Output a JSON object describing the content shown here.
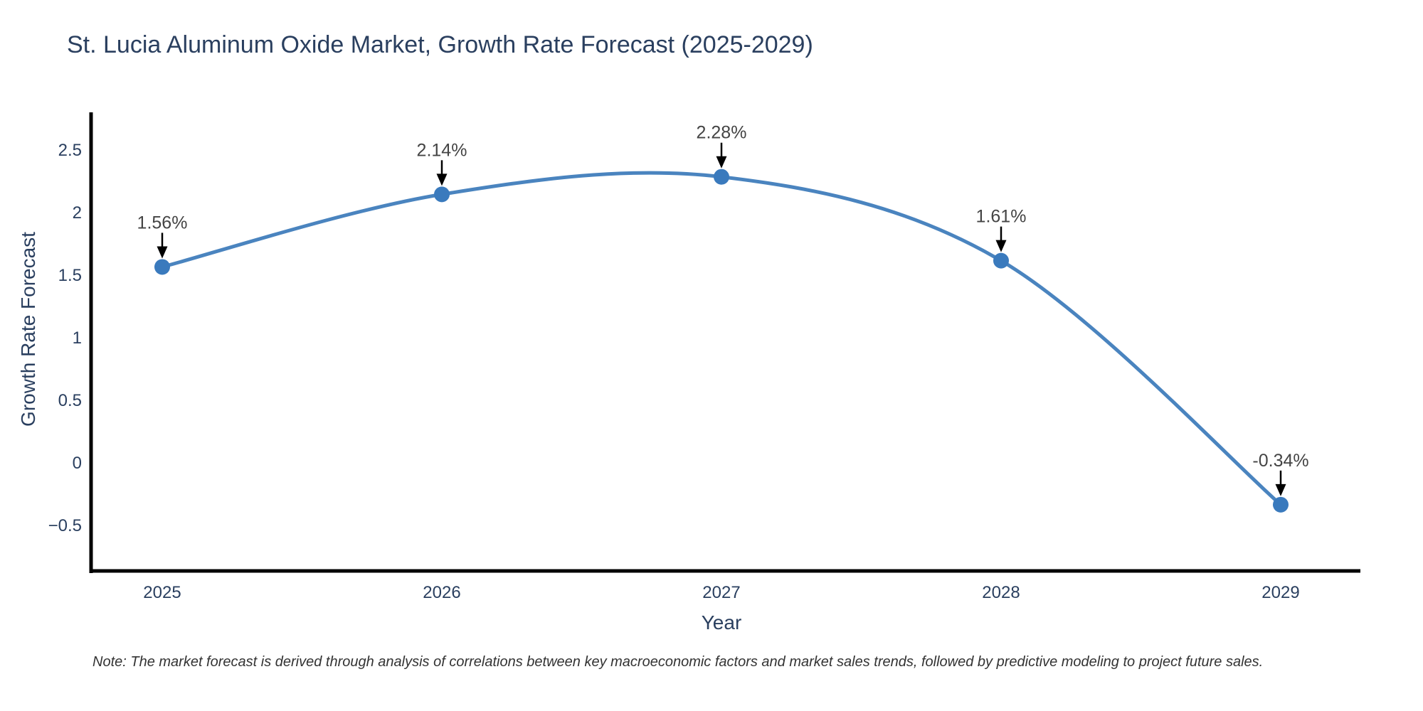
{
  "chart_data": {
    "type": "line",
    "line_shape": "spline",
    "title": "St. Lucia Aluminum Oxide Market, Growth Rate Forecast (2025-2029)",
    "xlabel": "Year",
    "ylabel": "Growth Rate Forecast",
    "note": "Note: The market forecast is derived through analysis of correlations between key macroeconomic factors and market sales trends, followed by predictive modeling to project future sales.",
    "x": [
      2025,
      2026,
      2027,
      2028,
      2029
    ],
    "values": [
      1.56,
      2.14,
      2.28,
      1.61,
      -0.34
    ],
    "point_labels": [
      "1.56%",
      "2.14%",
      "2.28%",
      "1.61%",
      "-0.34%"
    ],
    "xticks": [
      "2025",
      "2026",
      "2027",
      "2028",
      "2029"
    ],
    "yticks": [
      {
        "value": 2.5,
        "label": "2.5"
      },
      {
        "value": 2,
        "label": "2"
      },
      {
        "value": 1.5,
        "label": "1.5"
      },
      {
        "value": 1,
        "label": "1"
      },
      {
        "value": 0.5,
        "label": "0.5"
      },
      {
        "value": 0,
        "label": "0"
      },
      {
        "value": -0.5,
        "label": "−0.5"
      }
    ],
    "ylim": [
      -0.87,
      2.8
    ],
    "grid": false,
    "legend": "none",
    "colors": {
      "line": "#4a84bf",
      "marker": "#3a7abd",
      "axis": "#000000",
      "title_text": "#2a3f5f",
      "tick_text": "#2a3f5f",
      "annotation_text": "#444444",
      "annotation_arrow": "#000000",
      "note_text": "#333333",
      "background": "#ffffff"
    }
  }
}
